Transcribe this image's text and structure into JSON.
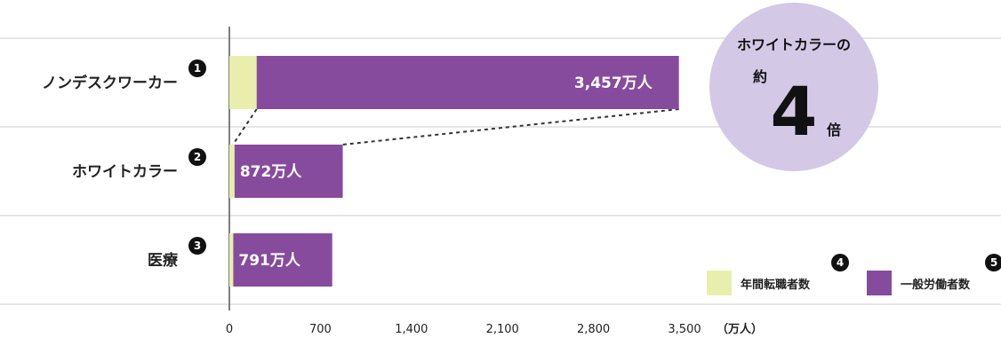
{
  "chart_data": {
    "type": "bar",
    "orientation": "horizontal",
    "stacked": true,
    "categories": [
      "ノンデスクワーカー",
      "ホワイトカラー",
      "医療"
    ],
    "category_badges": [
      "1",
      "2",
      "3"
    ],
    "series": [
      {
        "name": "年間転職者数",
        "values": [
          210,
          40,
          30
        ],
        "color": "#e8efad",
        "badge": "4"
      },
      {
        "name": "一般労働者数",
        "values": [
          3247,
          832,
          761
        ],
        "color": "#874b9e",
        "badge": "5"
      }
    ],
    "data_labels": [
      "3,457万人",
      "872万人",
      "791万人"
    ],
    "x_ticks": [
      "0",
      "700",
      "1,400",
      "2,100",
      "2,800",
      "3,500"
    ],
    "x_tick_values": [
      0,
      700,
      1400,
      2100,
      2800,
      3500
    ],
    "x_unit": "（万人）",
    "xlim": [
      0,
      3500
    ],
    "grid": "horizontal separators",
    "legend_placement": "bottom-right",
    "callout": {
      "line1": "ホワイトカラーの",
      "line2": "約",
      "number": "4",
      "line3": "倍",
      "color": "#d3c9e6"
    }
  }
}
